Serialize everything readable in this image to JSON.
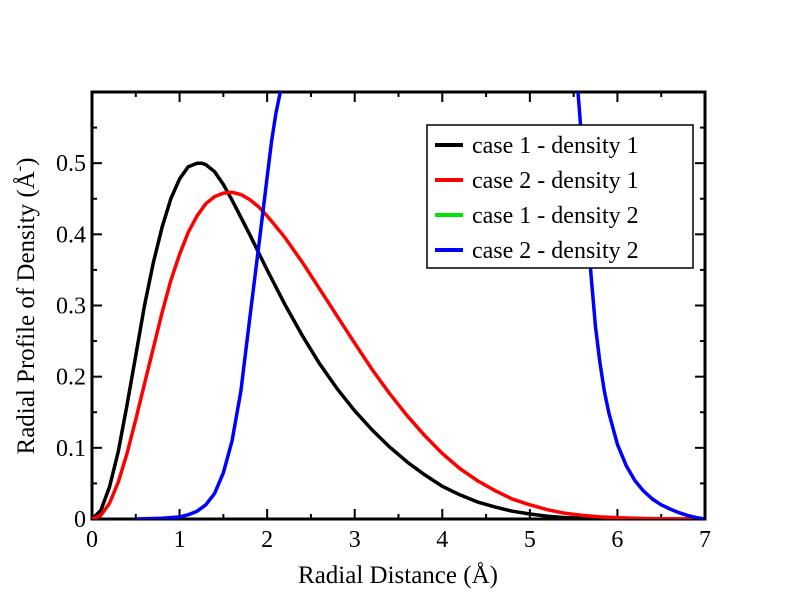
{
  "chart_data": {
    "type": "line",
    "title": "",
    "xlabel": "Radial Distance (Å)",
    "ylabel": "Radial Profile of Density (Å",
    "ylabel_superscript": "-",
    "xlim": [
      0,
      7
    ],
    "ylim": [
      0,
      0.6
    ],
    "x_ticks": [
      0,
      1,
      2,
      3,
      4,
      5,
      6,
      7
    ],
    "x_tick_labels": [
      "0",
      "1",
      "2",
      "3",
      "4",
      "5",
      "6",
      "7"
    ],
    "y_ticks": [
      0,
      0.1,
      0.2,
      0.3,
      0.4,
      0.5
    ],
    "y_tick_labels": [
      "0",
      "0.1",
      "0.2",
      "0.3",
      "0.4",
      "0.5"
    ],
    "grid": false,
    "legend_position": "top-right",
    "series": [
      {
        "name": "case 1 - density 1",
        "color": "#000000",
        "x": [
          0,
          0.1,
          0.2,
          0.3,
          0.4,
          0.5,
          0.6,
          0.7,
          0.8,
          0.9,
          1.0,
          1.1,
          1.2,
          1.25,
          1.3,
          1.4,
          1.5,
          1.6,
          1.8,
          2.0,
          2.2,
          2.4,
          2.6,
          2.8,
          3.0,
          3.2,
          3.4,
          3.6,
          3.8,
          4.0,
          4.2,
          4.4,
          4.6,
          4.8,
          5.0,
          5.2,
          5.4,
          5.6,
          5.8,
          6.0,
          6.2,
          6.4,
          6.6,
          6.8,
          7.0
        ],
        "y": [
          0,
          0.012,
          0.045,
          0.095,
          0.16,
          0.23,
          0.3,
          0.36,
          0.41,
          0.45,
          0.478,
          0.495,
          0.5,
          0.5,
          0.498,
          0.488,
          0.47,
          0.448,
          0.4,
          0.35,
          0.302,
          0.258,
          0.218,
          0.183,
          0.152,
          0.125,
          0.101,
          0.08,
          0.062,
          0.046,
          0.034,
          0.024,
          0.017,
          0.011,
          0.007,
          0.004,
          0.002,
          0.001,
          0.0005,
          0.0002,
          0,
          0,
          0,
          0,
          0
        ]
      },
      {
        "name": "case 2 - density 1",
        "color": "#ff0000",
        "x": [
          0,
          0.1,
          0.2,
          0.3,
          0.4,
          0.5,
          0.6,
          0.7,
          0.8,
          0.9,
          1.0,
          1.1,
          1.2,
          1.3,
          1.4,
          1.5,
          1.6,
          1.7,
          1.8,
          1.9,
          2.0,
          2.2,
          2.4,
          2.6,
          2.8,
          3.0,
          3.2,
          3.4,
          3.6,
          3.8,
          4.0,
          4.2,
          4.4,
          4.6,
          4.8,
          5.0,
          5.2,
          5.4,
          5.6,
          5.8,
          6.0,
          6.2,
          6.4,
          6.6,
          6.8,
          7.0
        ],
        "y": [
          0,
          0.005,
          0.022,
          0.052,
          0.092,
          0.14,
          0.19,
          0.24,
          0.29,
          0.335,
          0.372,
          0.403,
          0.426,
          0.443,
          0.453,
          0.458,
          0.459,
          0.456,
          0.449,
          0.439,
          0.426,
          0.396,
          0.361,
          0.323,
          0.285,
          0.247,
          0.21,
          0.176,
          0.145,
          0.117,
          0.092,
          0.071,
          0.054,
          0.04,
          0.028,
          0.02,
          0.013,
          0.008,
          0.005,
          0.003,
          0.002,
          0.001,
          0.0005,
          0.0002,
          0.0001,
          0
        ]
      },
      {
        "name": "case 1 - density 2",
        "color": "#00e600",
        "x": [],
        "y": []
      },
      {
        "name": "case 2 - density 2",
        "color": "#0000ff",
        "x": [
          0.5,
          0.8,
          1.0,
          1.1,
          1.2,
          1.3,
          1.4,
          1.5,
          1.6,
          1.7,
          1.8,
          1.9,
          1.95,
          2.0,
          2.05,
          2.1,
          2.15,
          5.55,
          5.6,
          5.65,
          5.7,
          5.75,
          5.8,
          5.85,
          5.9,
          6.0,
          6.1,
          6.2,
          6.3,
          6.4,
          6.5,
          6.6,
          6.7,
          6.8,
          6.9,
          7.0
        ],
        "y": [
          0,
          0.001,
          0.003,
          0.006,
          0.011,
          0.02,
          0.036,
          0.065,
          0.11,
          0.18,
          0.28,
          0.38,
          0.43,
          0.48,
          0.53,
          0.57,
          0.6,
          0.6,
          0.52,
          0.42,
          0.34,
          0.27,
          0.22,
          0.18,
          0.15,
          0.105,
          0.075,
          0.054,
          0.039,
          0.028,
          0.02,
          0.014,
          0.009,
          0.005,
          0.002,
          0
        ]
      }
    ]
  }
}
